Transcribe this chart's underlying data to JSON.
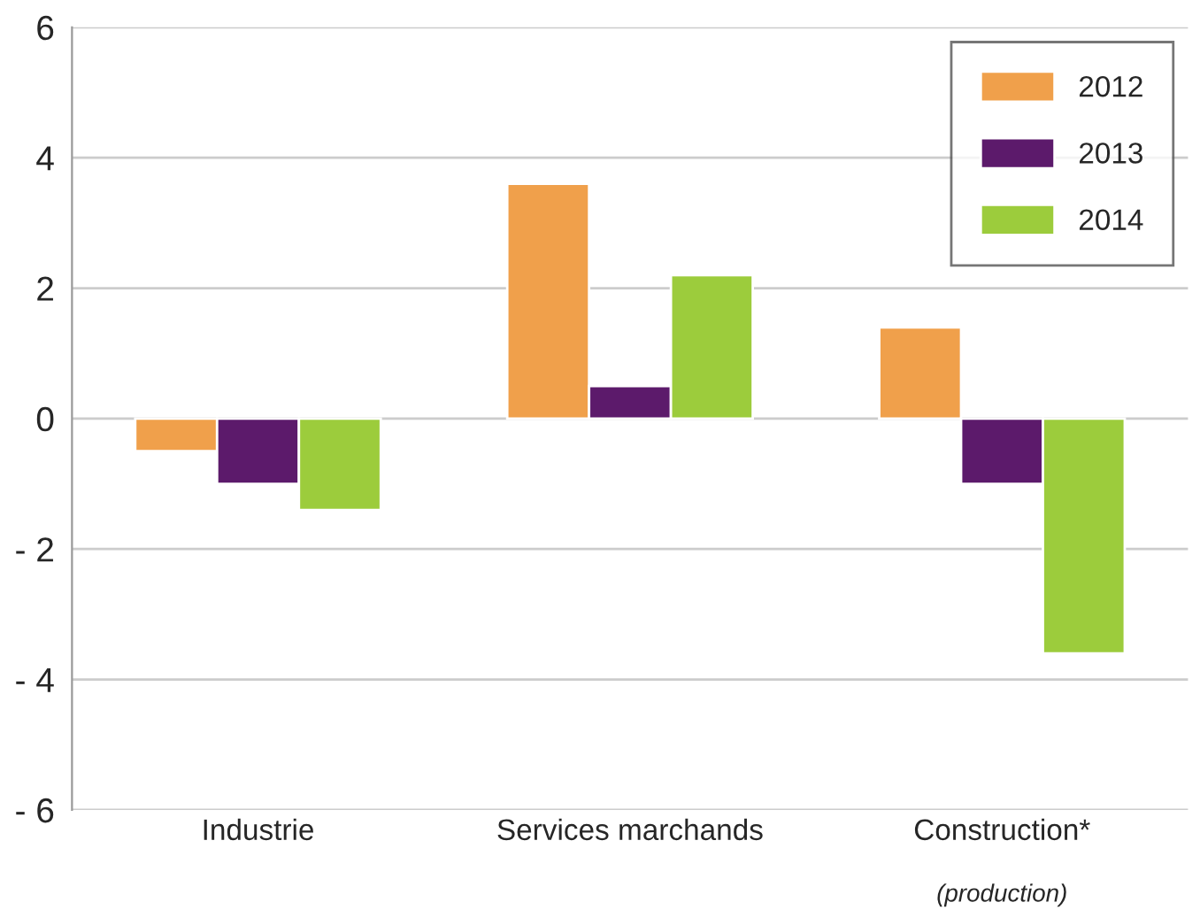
{
  "chart_data": {
    "type": "bar",
    "categories": [
      "Industrie",
      "Services marchands",
      "Construction*"
    ],
    "series": [
      {
        "name": "2012",
        "color": "#f0a04b",
        "values": [
          -0.5,
          3.6,
          1.4
        ]
      },
      {
        "name": "2013",
        "color": "#5c1a6b",
        "values": [
          -1.0,
          0.5,
          -1.0
        ]
      },
      {
        "name": "2014",
        "color": "#9ccc3c",
        "values": [
          -1.4,
          2.2,
          -3.6
        ]
      }
    ],
    "ylim": [
      -6,
      6
    ],
    "yticks": [
      {
        "value": -6,
        "label": "- 6"
      },
      {
        "value": -4,
        "label": "- 4"
      },
      {
        "value": -2,
        "label": "- 2"
      },
      0,
      2,
      4,
      6
    ],
    "grid": "y",
    "legend": "top right",
    "annotations": [
      "(production)"
    ]
  }
}
